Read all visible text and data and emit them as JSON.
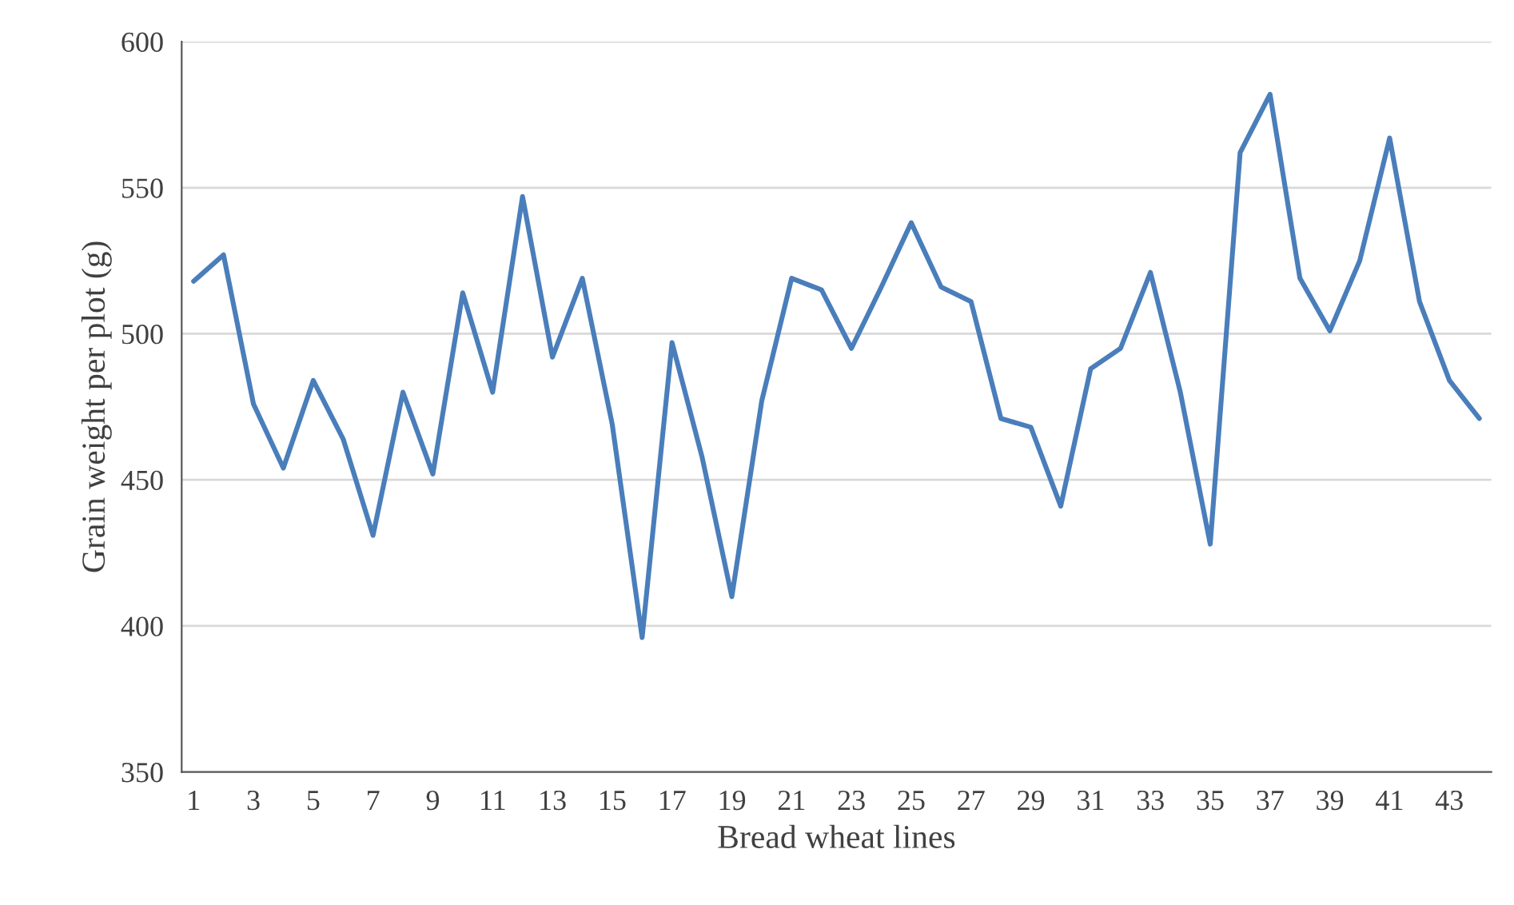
{
  "chart_data": {
    "type": "line",
    "xlabel": "Bread wheat lines",
    "ylabel": "Grain weight per plot (g)",
    "categories": [
      "1",
      null,
      "3",
      null,
      "5",
      null,
      "7",
      null,
      "9",
      null,
      "11",
      null,
      "13",
      null,
      "15",
      null,
      "17",
      null,
      "19",
      null,
      "21",
      null,
      "23",
      null,
      "25",
      null,
      "27",
      null,
      "29",
      null,
      "31",
      null,
      "33",
      null,
      "35",
      null,
      "37",
      null,
      "39",
      null,
      "41",
      null,
      "43",
      null
    ],
    "series": [
      {
        "color": "#4a7ebb",
        "values": [
          518,
          527,
          476,
          454,
          484,
          464,
          431,
          480,
          452,
          514,
          480,
          547,
          492,
          519,
          469,
          396,
          497,
          458,
          410,
          477,
          519,
          515,
          495,
          516,
          538,
          516,
          511,
          471,
          468,
          441,
          488,
          495,
          521,
          480,
          428,
          562,
          582,
          519,
          501,
          525,
          567,
          511,
          484,
          471
        ]
      }
    ],
    "ylim": [
      350,
      600
    ],
    "yticks": [
      350,
      400,
      450,
      500,
      550,
      600
    ],
    "grid": "y",
    "legend": false,
    "marker": "none",
    "line_style": "solid"
  }
}
